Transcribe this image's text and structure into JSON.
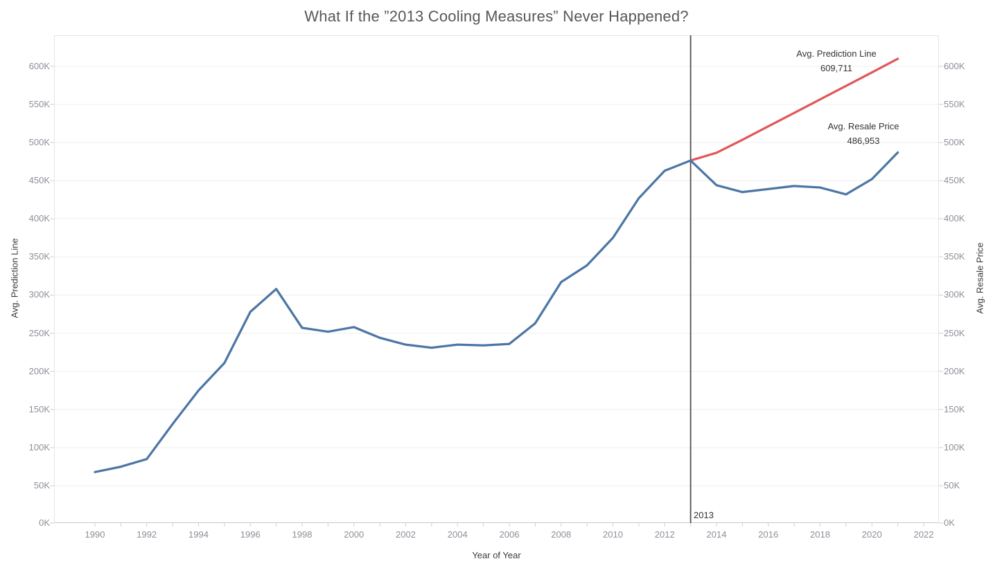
{
  "title": "What If the ”2013 Cooling Measures” Never Happened?",
  "colors": {
    "series_resale": "#4c76a4",
    "series_prediction": "#e15759",
    "reference_line": "#4f4f4f",
    "gridline": "#efefef",
    "tick_mark": "#cfcfcf",
    "axis_text": "#8b8f96",
    "label_text": "#333333",
    "title_text": "#555759"
  },
  "chart_data": {
    "type": "line",
    "title": "What If the ”2013 Cooling Measures” Never Happened?",
    "xlabel": "Year of Year",
    "ylabel_left": "Avg. Prediction Line",
    "ylabel_right": "Avg. Resale Price",
    "xlim": [
      1988.4,
      2022.6
    ],
    "ylim": [
      0,
      640000
    ],
    "grid": "horizontal",
    "legend_position": "none",
    "x_tick_labels": [
      "1990",
      "1992",
      "1994",
      "1996",
      "1998",
      "2000",
      "2002",
      "2004",
      "2006",
      "2008",
      "2010",
      "2012",
      "2014",
      "2016",
      "2018",
      "2020",
      "2022"
    ],
    "x_tick_years": [
      1990,
      1992,
      1994,
      1996,
      1998,
      2000,
      2002,
      2004,
      2006,
      2008,
      2010,
      2012,
      2014,
      2016,
      2018,
      2020,
      2022
    ],
    "y_tick_labels": [
      "0K",
      "50K",
      "100K",
      "150K",
      "200K",
      "250K",
      "300K",
      "350K",
      "400K",
      "450K",
      "500K",
      "550K",
      "600K"
    ],
    "y_tick_values": [
      0,
      50000,
      100000,
      150000,
      200000,
      250000,
      300000,
      350000,
      400000,
      450000,
      500000,
      550000,
      600000
    ],
    "series": [
      {
        "name": "Avg. Resale Price",
        "color": "#4c76a4",
        "x": [
          1990,
          1991,
          1992,
          1993,
          1994,
          1995,
          1996,
          1997,
          1998,
          1999,
          2000,
          2001,
          2002,
          2003,
          2004,
          2005,
          2006,
          2007,
          2008,
          2009,
          2010,
          2011,
          2012,
          2013,
          2014,
          2015,
          2016,
          2017,
          2018,
          2019,
          2020,
          2021
        ],
        "values": [
          68000,
          75000,
          85000,
          131000,
          175000,
          211000,
          278000,
          308000,
          257000,
          252000,
          258000,
          244000,
          235000,
          231000,
          235000,
          234000,
          236000,
          263000,
          317000,
          339000,
          375000,
          427000,
          463000,
          476400,
          444000,
          435000,
          439000,
          443000,
          441000,
          432000,
          452000,
          486953
        ]
      },
      {
        "name": "Avg. Prediction Line",
        "color": "#e15759",
        "x": [
          2013,
          2014,
          2015,
          2016,
          2017,
          2018,
          2019,
          2020,
          2021
        ],
        "values": [
          476400,
          486500,
          503500,
          521200,
          538800,
          556500,
          574200,
          591900,
          609711
        ]
      }
    ],
    "reference_line": {
      "x": 2013,
      "label": "2013"
    },
    "annotations": [
      {
        "title": "Avg. Prediction Line",
        "value": "609,711"
      },
      {
        "title": "Avg. Resale Price",
        "value": "486,953"
      }
    ]
  }
}
